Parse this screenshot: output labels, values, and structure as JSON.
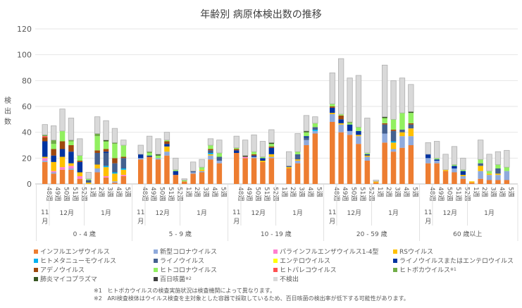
{
  "chart_data": {
    "type": "bar",
    "stacked": true,
    "title": "年齢別 病原体検出数の推移",
    "ylabel": "検出数",
    "ylim": [
      0,
      120
    ],
    "yticks": [
      0,
      20,
      40,
      60,
      80,
      100,
      120
    ],
    "grid": true,
    "legend_position": "bottom",
    "weeks": [
      "48週",
      "49週",
      "50週",
      "51週",
      "52週",
      "1週",
      "2週",
      "3週",
      "4週",
      "5週"
    ],
    "months": [
      {
        "label": "11月",
        "weeks": 1
      },
      {
        "label": "12月",
        "weeks": 4
      },
      {
        "label": "1月",
        "weeks": 5
      }
    ],
    "series": [
      {
        "name": "インフルエンザウイルス",
        "color": "#ED7D31"
      },
      {
        "name": "新型コロナウイルス",
        "color": "#8FAADC"
      },
      {
        "name": "パラインフルエンザウイルス1-4型",
        "color": "#FF7FD0"
      },
      {
        "name": "RSウイルス",
        "color": "#FFC000"
      },
      {
        "name": "ヒトメタニューモウイルス",
        "color": "#00B0F0"
      },
      {
        "name": "ライノウイルス",
        "color": "#44608F"
      },
      {
        "name": "エンテロウイルス",
        "color": "#FFFF00"
      },
      {
        "name": "ライノウイルスまたはエンテロウイルス",
        "color": "#0033A0"
      },
      {
        "name": "アデノウイルス",
        "color": "#9E480E"
      },
      {
        "name": "ヒトコロナウイルス",
        "color": "#92F060"
      },
      {
        "name": "ヒトパレコウイルス",
        "color": "#FF5050"
      },
      {
        "name": "ヒトボカウイルス",
        "note": "※1",
        "color": "#70AD47"
      },
      {
        "name": "肺炎マイコプラズマ",
        "color": "#375623"
      },
      {
        "name": "百日咳菌",
        "note": "※2",
        "color": "#404040"
      },
      {
        "name": "不検出",
        "color": "#D9D9D9"
      }
    ],
    "groups": [
      {
        "label": "0 - 4 歳",
        "stacks": [
          [
            17,
            1,
            2,
            1,
            0,
            0,
            0,
            12,
            3,
            0,
            1,
            1,
            0,
            0,
            8
          ],
          [
            8,
            1,
            1,
            7,
            0,
            0,
            0,
            5,
            5,
            4,
            0,
            3,
            0,
            0,
            11
          ],
          [
            11,
            0,
            2,
            8,
            0,
            0,
            0,
            6,
            6,
            8,
            0,
            0,
            0,
            0,
            17
          ],
          [
            11,
            1,
            2,
            2,
            0,
            0,
            0,
            9,
            5,
            3,
            0,
            1,
            0,
            0,
            17
          ],
          [
            4,
            0,
            2,
            3,
            0,
            0,
            0,
            8,
            1,
            4,
            0,
            0,
            0,
            0,
            13
          ],
          [
            0,
            0,
            0,
            1,
            0,
            2,
            0,
            0,
            0,
            1,
            0,
            0,
            0,
            0,
            5
          ],
          [
            9,
            3,
            0,
            3,
            0,
            9,
            0,
            0,
            2,
            11,
            0,
            2,
            0,
            0,
            13
          ],
          [
            5,
            0,
            1,
            7,
            1,
            10,
            0,
            1,
            2,
            6,
            0,
            0,
            1,
            0,
            15
          ],
          [
            1,
            1,
            0,
            6,
            1,
            7,
            0,
            0,
            4,
            11,
            0,
            1,
            0,
            0,
            11
          ],
          [
            6,
            0,
            1,
            4,
            1,
            8,
            0,
            0,
            1,
            9,
            0,
            0,
            0,
            0,
            4
          ]
        ]
      },
      {
        "label": "5 - 9 歳",
        "stacks": [
          [
            19,
            1,
            0,
            0,
            0,
            0,
            0,
            3,
            0,
            0,
            0,
            0,
            0,
            0,
            7
          ],
          [
            21,
            0,
            0,
            0,
            0,
            0,
            0,
            1,
            0,
            2,
            0,
            1,
            0,
            0,
            12
          ],
          [
            19,
            1,
            0,
            0,
            0,
            0,
            0,
            0,
            0,
            2,
            0,
            0,
            1,
            0,
            12
          ],
          [
            22,
            3,
            0,
            4,
            0,
            0,
            0,
            2,
            2,
            1,
            0,
            0,
            0,
            0,
            6
          ],
          [
            7,
            0,
            0,
            0,
            0,
            0,
            0,
            3,
            0,
            1,
            0,
            0,
            0,
            0,
            9
          ],
          [
            2,
            0,
            0,
            0,
            0,
            0,
            0,
            0,
            0,
            1,
            0,
            0,
            0,
            0,
            1
          ],
          [
            8,
            1,
            0,
            0,
            0,
            1,
            0,
            0,
            0,
            0,
            0,
            0,
            0,
            0,
            7
          ],
          [
            9,
            1,
            0,
            1,
            0,
            0,
            0,
            0,
            0,
            2,
            0,
            0,
            0,
            0,
            6
          ],
          [
            19,
            3,
            0,
            1,
            1,
            2,
            0,
            0,
            1,
            3,
            0,
            0,
            0,
            0,
            5
          ],
          [
            16,
            2,
            0,
            0,
            0,
            3,
            0,
            0,
            0,
            3,
            0,
            0,
            0,
            0,
            10
          ]
        ]
      },
      {
        "label": "10 - 19 歳",
        "stacks": [
          [
            24,
            0,
            0,
            0,
            0,
            0,
            0,
            2,
            1,
            1,
            0,
            0,
            0,
            0,
            9
          ],
          [
            20,
            0,
            1,
            0,
            0,
            0,
            0,
            0,
            0,
            0,
            0,
            0,
            1,
            0,
            12
          ],
          [
            20,
            1,
            0,
            0,
            0,
            0,
            0,
            1,
            1,
            2,
            0,
            0,
            0,
            0,
            13
          ],
          [
            17,
            0,
            0,
            1,
            0,
            0,
            0,
            2,
            0,
            1,
            0,
            0,
            0,
            0,
            12
          ],
          [
            20,
            1,
            0,
            2,
            0,
            0,
            0,
            5,
            1,
            2,
            0,
            0,
            1,
            0,
            10
          ],
          [
            0,
            0,
            0,
            0,
            0,
            0,
            0,
            0,
            0,
            0,
            0,
            0,
            0,
            0,
            0
          ],
          [
            12,
            0,
            0,
            1,
            0,
            1,
            0,
            0,
            0,
            0,
            0,
            0,
            0,
            0,
            11
          ],
          [
            16,
            2,
            0,
            1,
            0,
            4,
            0,
            0,
            0,
            2,
            0,
            0,
            0,
            0,
            14
          ],
          [
            30,
            4,
            0,
            0,
            0,
            2,
            0,
            1,
            0,
            3,
            0,
            0,
            1,
            0,
            12
          ],
          [
            39,
            2,
            0,
            0,
            1,
            2,
            0,
            0,
            0,
            3,
            0,
            0,
            0,
            0,
            5
          ]
        ]
      },
      {
        "label": "20 - 59 歳",
        "stacks": [
          [
            48,
            6,
            0,
            1,
            0,
            0,
            0,
            4,
            1,
            2,
            0,
            0,
            0,
            0,
            24
          ],
          [
            40,
            6,
            0,
            1,
            0,
            0,
            0,
            3,
            3,
            1,
            0,
            0,
            0,
            0,
            43
          ],
          [
            38,
            3,
            0,
            0,
            0,
            0,
            0,
            5,
            0,
            1,
            0,
            1,
            0,
            0,
            34
          ],
          [
            31,
            6,
            0,
            1,
            0,
            0,
            0,
            3,
            0,
            3,
            0,
            0,
            0,
            0,
            40
          ],
          [
            18,
            3,
            0,
            1,
            0,
            0,
            0,
            1,
            0,
            1,
            0,
            0,
            0,
            0,
            27
          ],
          [
            1,
            0,
            0,
            1,
            0,
            0,
            0,
            0,
            0,
            0,
            0,
            0,
            0,
            0,
            1
          ],
          [
            32,
            7,
            0,
            0,
            0,
            7,
            0,
            0,
            1,
            4,
            0,
            0,
            1,
            0,
            40
          ],
          [
            25,
            2,
            0,
            5,
            1,
            8,
            0,
            0,
            1,
            8,
            0,
            0,
            0,
            0,
            30
          ],
          [
            28,
            9,
            0,
            3,
            0,
            2,
            0,
            0,
            0,
            13,
            0,
            0,
            0,
            0,
            27
          ],
          [
            30,
            7,
            0,
            6,
            0,
            3,
            0,
            0,
            1,
            8,
            0,
            0,
            1,
            0,
            21
          ]
        ]
      },
      {
        "label": "60 歳以上",
        "stacks": [
          [
            16,
            4,
            0,
            0,
            0,
            0,
            0,
            3,
            0,
            0,
            0,
            0,
            0,
            0,
            9
          ],
          [
            16,
            2,
            0,
            0,
            0,
            0,
            0,
            1,
            0,
            1,
            0,
            0,
            0,
            0,
            13
          ],
          [
            10,
            0,
            0,
            1,
            0,
            0,
            0,
            0,
            0,
            0,
            0,
            0,
            0,
            0,
            12
          ],
          [
            9,
            3,
            0,
            0,
            0,
            0,
            0,
            2,
            0,
            1,
            0,
            0,
            0,
            0,
            14
          ],
          [
            4,
            2,
            0,
            1,
            0,
            0,
            0,
            3,
            0,
            1,
            0,
            0,
            0,
            0,
            9
          ],
          [
            1,
            0,
            0,
            1,
            0,
            0,
            0,
            0,
            0,
            0,
            0,
            0,
            0,
            0,
            0
          ],
          [
            4,
            6,
            0,
            4,
            0,
            2,
            0,
            0,
            0,
            3,
            0,
            0,
            0,
            0,
            15
          ],
          [
            3,
            4,
            0,
            1,
            0,
            0,
            0,
            0,
            0,
            2,
            0,
            0,
            0,
            0,
            13
          ],
          [
            3,
            4,
            0,
            1,
            0,
            4,
            0,
            0,
            0,
            3,
            0,
            0,
            0,
            0,
            10
          ],
          [
            3,
            7,
            0,
            0,
            0,
            0,
            0,
            0,
            0,
            3,
            0,
            0,
            0,
            0,
            13
          ]
        ]
      }
    ],
    "notes": [
      {
        "mark": "※1",
        "text": "ヒトボカウイルスの検査実施状況は検査機関によって異なります。"
      },
      {
        "mark": "※2",
        "text": "ARI検査検体はウイルス検査を主対象とした容器で採取しているため、百日咳菌の検出率が低下する可能性があります。"
      }
    ]
  }
}
